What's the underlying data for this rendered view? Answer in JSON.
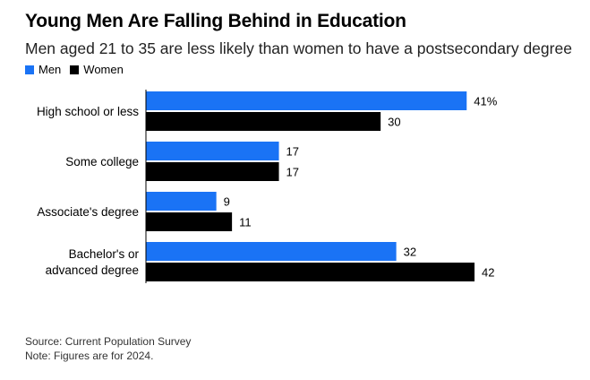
{
  "chart_data": {
    "type": "bar",
    "orientation": "horizontal",
    "title": "Young Men Are Falling Behind in Education",
    "subtitle": "Men aged 21 to 35 are less likely than women to have a postsecondary degree",
    "categories": [
      [
        "High school or less"
      ],
      [
        "Some college"
      ],
      [
        "Associate's degree"
      ],
      [
        "Bachelor's or",
        "advanced degree"
      ]
    ],
    "series": [
      {
        "name": "Men",
        "color": "#1a73f5",
        "values": [
          41,
          17,
          9,
          32
        ],
        "labels": [
          "41%",
          "17",
          "9",
          "32"
        ]
      },
      {
        "name": "Women",
        "color": "#000000",
        "values": [
          30,
          17,
          11,
          42
        ],
        "labels": [
          "30",
          "17",
          "11",
          "42"
        ]
      }
    ],
    "xlim": [
      0,
      42
    ],
    "grid": false,
    "legend_position": "top-left"
  },
  "footer": {
    "source": "Source: Current Population Survey",
    "note": "Note: Figures are for 2024."
  }
}
